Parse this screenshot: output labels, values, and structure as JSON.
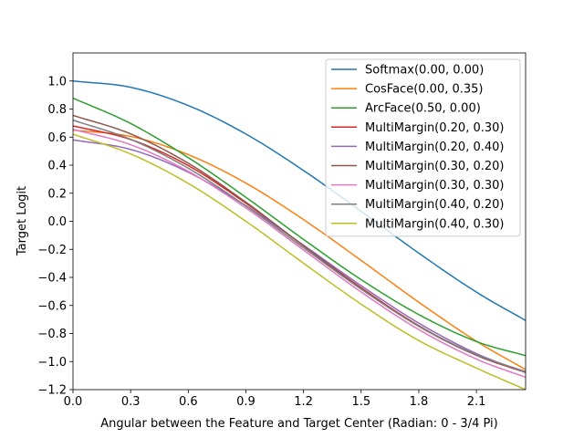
{
  "chart_data": {
    "type": "line",
    "title": "",
    "xlabel": "Angular between the Feature and Target Center (Radian: 0 - 3/4 Pi)",
    "ylabel": "Target Logit",
    "xlim": [
      0,
      2.356
    ],
    "ylim": [
      -1.2,
      1.2
    ],
    "xticks": [
      "0.0",
      "0.3",
      "0.6",
      "0.9",
      "1.2",
      "1.5",
      "1.8",
      "2.1"
    ],
    "xtick_values": [
      0,
      0.3,
      0.6,
      0.9,
      1.2,
      1.5,
      1.8,
      2.1
    ],
    "yticks": [
      "−1.2",
      "−1.0",
      "−0.8",
      "−0.6",
      "−0.4",
      "−0.2",
      "0.0",
      "0.2",
      "0.4",
      "0.6",
      "0.8",
      "1.0"
    ],
    "ytick_values": [
      -1.2,
      -1.0,
      -0.8,
      -0.6,
      -0.4,
      -0.2,
      0.0,
      0.2,
      0.4,
      0.6,
      0.8,
      1.0
    ],
    "grid": false,
    "legend_position": "top-right",
    "x": [
      0,
      0.3,
      0.6,
      0.9,
      1.2,
      1.5,
      1.8,
      2.1,
      2.356
    ],
    "series": [
      {
        "name": "Softmax(0.00, 0.00)",
        "color": "#1f77b4",
        "values": [
          1.0,
          0.955,
          0.825,
          0.622,
          0.362,
          0.071,
          -0.227,
          -0.505,
          -0.707
        ]
      },
      {
        "name": "CosFace(0.00, 0.35)",
        "color": "#ff7f0e",
        "values": [
          0.65,
          0.605,
          0.475,
          0.272,
          0.012,
          -0.279,
          -0.577,
          -0.855,
          -1.057
        ]
      },
      {
        "name": "ArcFace(0.50, 0.00)",
        "color": "#2ca02c",
        "values": [
          0.878,
          0.697,
          0.454,
          0.171,
          -0.129,
          -0.416,
          -0.665,
          -0.857,
          -0.958
        ]
      },
      {
        "name": "MultiMargin(0.20, 0.30)",
        "color": "#d62728",
        "values": [
          0.68,
          0.583,
          0.397,
          0.129,
          -0.174,
          -0.474,
          -0.744,
          -0.955,
          -1.078
        ]
      },
      {
        "name": "MultiMargin(0.20, 0.40)",
        "color": "#9467bd",
        "values": [
          0.58,
          0.512,
          0.35,
          0.111,
          -0.17,
          -0.459,
          -0.726,
          -0.943,
          -1.077
        ]
      },
      {
        "name": "MultiMargin(0.30, 0.20)",
        "color": "#8c564b",
        "values": [
          0.755,
          0.623,
          0.414,
          0.136,
          -0.175,
          -0.479,
          -0.749,
          -0.955,
          -1.072
        ]
      },
      {
        "name": "MultiMargin(0.30, 0.30)",
        "color": "#e377c2",
        "values": [
          0.655,
          0.546,
          0.356,
          0.095,
          -0.205,
          -0.504,
          -0.772,
          -0.982,
          -1.112
        ]
      },
      {
        "name": "MultiMargin(0.40, 0.20)",
        "color": "#7f7f7f",
        "values": [
          0.721,
          0.584,
          0.378,
          0.109,
          -0.189,
          -0.484,
          -0.747,
          -0.951,
          -1.072
        ]
      },
      {
        "name": "MultiMargin(0.40, 0.30)",
        "color": "#bcbd22",
        "values": [
          0.621,
          0.48,
          0.27,
          0.0,
          -0.299,
          -0.591,
          -0.85,
          -1.046,
          -1.2
        ]
      }
    ]
  }
}
